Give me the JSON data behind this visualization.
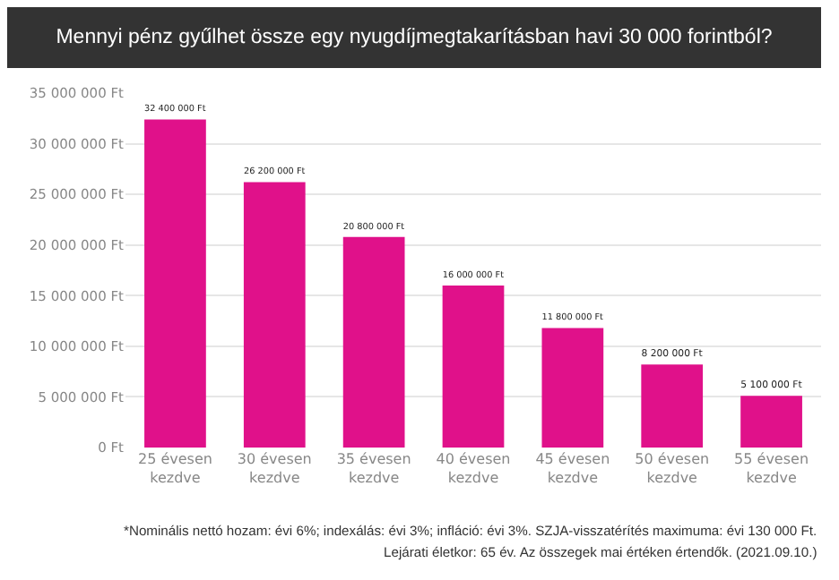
{
  "chart_data": {
    "type": "bar",
    "title": "Mennyi pénz gyűlhet össze egy nyugdíjmegtakarításban havi 30 000 forintból?",
    "categories": [
      "25 évesen\nkezdve",
      "30 évesen\nkezdve",
      "35 évesen\nkezdve",
      "40 évesen\nkezdve",
      "45 évesen\nkezdve",
      "50 évesen\nkezdve",
      "55 évesen\nkezdve"
    ],
    "values": [
      32400000,
      26200000,
      20800000,
      16000000,
      11800000,
      8200000,
      5100000
    ],
    "value_labels": [
      "32 400 000 Ft",
      "26 200 000 Ft",
      "20 800 000 Ft",
      "16 000 000 Ft",
      "11 800 000 Ft",
      "8 200 000 Ft",
      "5 100 000 Ft"
    ],
    "color": "#e0118a",
    "ylim": [
      0,
      35000000
    ],
    "yticks": [
      {
        "value": 0,
        "label": "0 Ft"
      },
      {
        "value": 5000000,
        "label": "5 000 000 Ft"
      },
      {
        "value": 10000000,
        "label": "10 000 000 Ft"
      },
      {
        "value": 15000000,
        "label": "15 000 000 Ft"
      },
      {
        "value": 20000000,
        "label": "20 000 000 Ft"
      },
      {
        "value": 25000000,
        "label": "25 000 000 Ft"
      },
      {
        "value": 30000000,
        "label": "30 000 000 Ft"
      },
      {
        "value": 35000000,
        "label": "35 000 000 Ft"
      }
    ],
    "grid": "y",
    "annotations": [
      "*Nominális nettó hozam: évi 6%; indexálás: évi 3%; infláció: évi 3%. SZJA-visszatérítés maximuma: évi 130 000 Ft.",
      "Lejárati életkor: 65 év. Az összegek mai értéken értendők. (2021.09.10.)"
    ]
  }
}
